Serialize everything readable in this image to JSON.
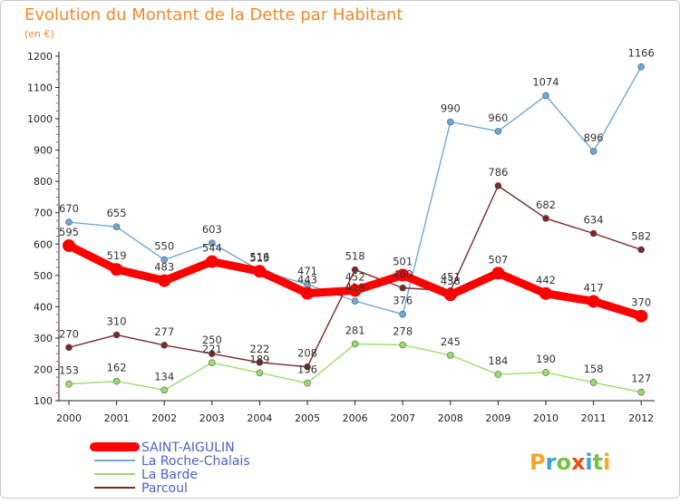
{
  "chart_data": {
    "type": "line",
    "title": "Evolution du Montant de la Dette par Habitant",
    "subtitle": "(en €)",
    "xlabel": "",
    "ylabel": "",
    "ylim": [
      100,
      1200
    ],
    "yticks": [
      100,
      200,
      300,
      400,
      500,
      600,
      700,
      800,
      900,
      1000,
      1100,
      1200
    ],
    "grid": false,
    "legend_position": "bottom-left",
    "x": [
      "2000",
      "2001",
      "2002",
      "2003",
      "2004",
      "2005",
      "2006",
      "2007",
      "2008",
      "2009",
      "2010",
      "2011",
      "2012"
    ],
    "series": [
      {
        "name": "SAINT-AIGULIN",
        "color": "#ff0000",
        "values": [
          595,
          519,
          483,
          544,
          513,
          443,
          452,
          501,
          438,
          507,
          442,
          417,
          370
        ]
      },
      {
        "name": "La Roche-Chalais",
        "color": "#6fa8d8",
        "values": [
          670,
          655,
          550,
          603,
          516,
          471,
          418,
          376,
          990,
          960,
          1074,
          896,
          1166
        ]
      },
      {
        "name": "La Barde",
        "color": "#99dd66",
        "values": [
          153,
          162,
          134,
          221,
          189,
          156,
          281,
          278,
          245,
          184,
          190,
          158,
          127
        ]
      },
      {
        "name": "Parcoul",
        "color": "#7a2a2a",
        "values": [
          270,
          310,
          277,
          250,
          222,
          208,
          518,
          460,
          451,
          786,
          682,
          634,
          582
        ]
      }
    ]
  },
  "branding": {
    "logo_text": "Proxiti",
    "logo_colors": [
      "#f5a623",
      "#3aa0d8",
      "#79c143",
      "#e94e1b",
      "#3aa0d8",
      "#79c143",
      "#f5a623"
    ]
  }
}
